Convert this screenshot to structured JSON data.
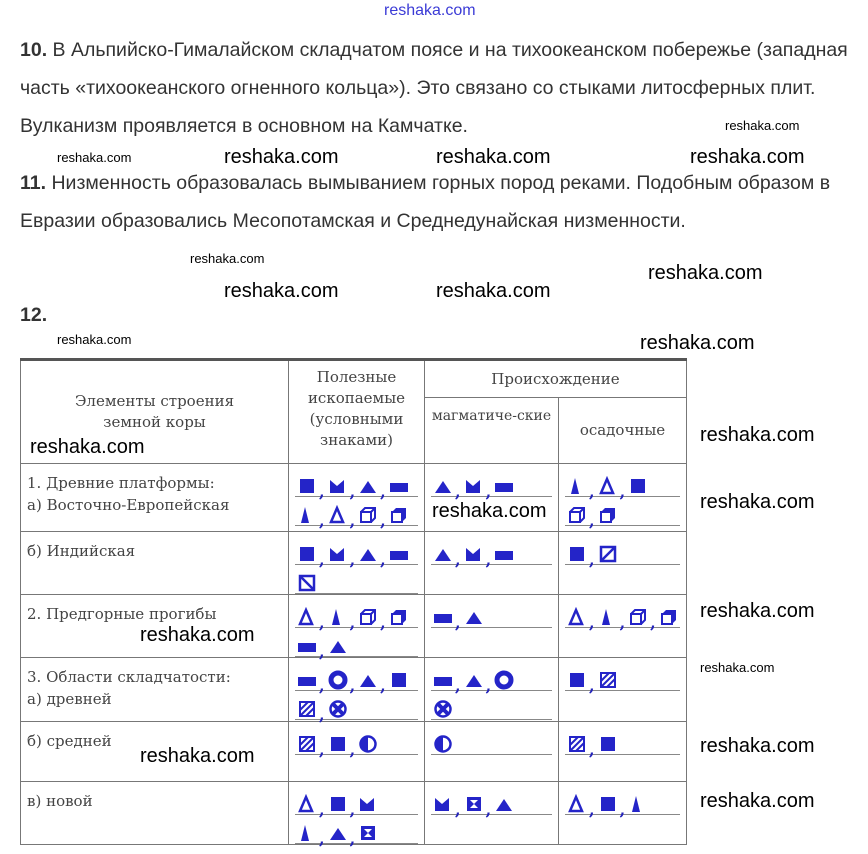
{
  "watermark": "reshaka.com",
  "paragraphs": [
    {
      "num": "10.",
      "text": "В Альпийско-Гималайском складчатом поясе и на тихоокеанском побережье (западная часть «тихоокеанского огненного кольца»). Это связано со стыками литосферных плит. Вулканизм проявляется в основном на Камчатке."
    },
    {
      "num": "11.",
      "text": "Низменность образовалась вымыванием горных пород реками. Подобным образом в Евразии образовались Месопотамская и Среднедунайская низменности."
    },
    {
      "num": "12.",
      "text": ""
    }
  ],
  "table": {
    "headers": {
      "col1": "Элементы строения земной коры",
      "col2": "Полезные ископаемые (условными знаками)",
      "col3": "Происхождение",
      "col3a": "магматиче-ские",
      "col3b": "осадочные"
    },
    "symbol_color": "#2424c8",
    "rows": [
      {
        "label": "1. Древние платформы:\nа) Восточно-Европейская",
        "minerals": [
          [
            "square",
            "crown",
            "triangle",
            "bar"
          ],
          [
            "tall-triangle",
            "outline-triangle",
            "cube-outline",
            "cube-filled"
          ]
        ],
        "magmatic": [
          [
            "triangle",
            "crown",
            "bar"
          ]
        ],
        "sedimentary": [
          [
            "tall-triangle",
            "outline-triangle",
            "square"
          ],
          [
            "cube-outline",
            "cube-filled"
          ]
        ]
      },
      {
        "label": "б) Индийская",
        "minerals": [
          [
            "square",
            "crown",
            "triangle",
            "bar"
          ],
          [
            "crossed-square"
          ]
        ],
        "magmatic": [
          [
            "triangle",
            "crown",
            "bar"
          ]
        ],
        "sedimentary": [
          [
            "square",
            "slashed-square"
          ]
        ]
      },
      {
        "label": "2. Предгорные прогибы",
        "minerals": [
          [
            "outline-triangle",
            "tall-triangle",
            "cube-outline",
            "cube-filled"
          ],
          [
            "bar",
            "triangle"
          ]
        ],
        "magmatic": [
          [
            "bar",
            "triangle"
          ]
        ],
        "sedimentary": [
          [
            "outline-triangle",
            "tall-triangle",
            "cube-outline",
            "cube-filled"
          ]
        ]
      },
      {
        "label": "3. Области складчатости:\nа) древней",
        "minerals": [
          [
            "bar",
            "ring",
            "triangle",
            "square"
          ],
          [
            "hatched-square",
            "circle-cross"
          ]
        ],
        "magmatic": [
          [
            "bar",
            "triangle",
            "ring"
          ],
          [
            "circle-cross"
          ]
        ],
        "sedimentary": [
          [
            "square",
            "hatched-square"
          ]
        ]
      },
      {
        "label": "б) средней",
        "minerals": [
          [
            "hatched-square",
            "square",
            "half-circle"
          ]
        ],
        "magmatic": [
          [
            "half-circle"
          ]
        ],
        "sedimentary": [
          [
            "hatched-square",
            "square"
          ]
        ]
      },
      {
        "label": "в) новой",
        "minerals": [
          [
            "outline-triangle",
            "square",
            "crown"
          ],
          [
            "tall-triangle",
            "triangle",
            "hourglass-square"
          ]
        ],
        "magmatic": [
          [
            "crown",
            "hourglass-square",
            "triangle"
          ]
        ],
        "sedimentary": [
          [
            "outline-triangle",
            "square",
            "tall-triangle"
          ]
        ]
      }
    ]
  }
}
